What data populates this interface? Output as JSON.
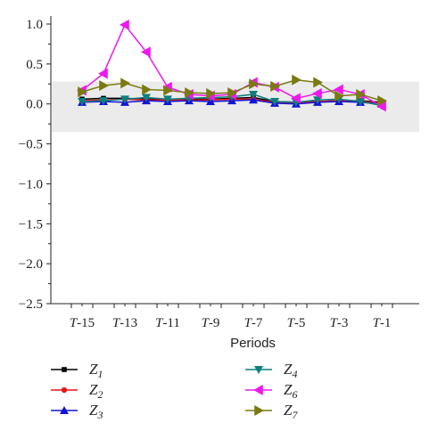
{
  "chart_data": {
    "type": "line",
    "xlabel": "Periods",
    "ylabel": "",
    "ylim": [
      -2.5,
      1.0
    ],
    "yticks": [
      1.0,
      0.5,
      0.0,
      -0.5,
      -1.0,
      -1.5,
      -2.0,
      -2.5
    ],
    "ytick_labels": [
      "1.0",
      "0.5",
      "0.0",
      "−0.5",
      "−1.0",
      "−1.5",
      "−2.0",
      "−2.5"
    ],
    "x": [
      "T-15",
      "T-14",
      "T-13",
      "T-12",
      "T-11",
      "T-10",
      "T-9",
      "T-8",
      "T-7",
      "T-6",
      "T-5",
      "T-4",
      "T-3",
      "T-2",
      "T-1"
    ],
    "xtick_labels": [
      {
        "label": "T-15",
        "prefix": "T",
        "suffix": "-15"
      },
      {
        "label": "T-13",
        "prefix": "T",
        "suffix": "-13"
      },
      {
        "label": "T-11",
        "prefix": "T",
        "suffix": "-11"
      },
      {
        "label": "T-9",
        "prefix": "T",
        "suffix": "-9"
      },
      {
        "label": "T-7",
        "prefix": "T",
        "suffix": "-7"
      },
      {
        "label": "T-5",
        "prefix": "T",
        "suffix": "-5"
      },
      {
        "label": "T-3",
        "prefix": "T",
        "suffix": "-3"
      },
      {
        "label": "T-1",
        "prefix": "T",
        "suffix": "-1"
      }
    ],
    "shaded_band": [
      -0.35,
      0.28
    ],
    "shaded_color": "#ebebeb",
    "legend_placement": "bottom",
    "series": [
      {
        "name": "Z1",
        "base": "Z",
        "sub": "1",
        "color": "#000000",
        "marker": "square",
        "values": [
          0.06,
          0.07,
          0.07,
          0.06,
          0.06,
          0.06,
          0.06,
          0.07,
          0.08,
          0.03,
          0.02,
          0.03,
          0.04,
          0.04,
          0.02
        ]
      },
      {
        "name": "Z2",
        "base": "Z",
        "sub": "2",
        "color": "#e81416",
        "marker": "circle",
        "values": [
          0.04,
          0.05,
          0.06,
          0.05,
          0.05,
          0.05,
          0.05,
          0.06,
          0.06,
          0.02,
          0.01,
          0.03,
          0.04,
          0.03,
          0.01
        ]
      },
      {
        "name": "Z3",
        "base": "Z",
        "sub": "3",
        "color": "#1212d8",
        "marker": "triangle-up",
        "values": [
          0.02,
          0.03,
          0.02,
          0.04,
          0.03,
          0.04,
          0.03,
          0.04,
          0.05,
          0.01,
          0.0,
          0.02,
          0.03,
          0.02,
          0.0
        ]
      },
      {
        "name": "Z4",
        "base": "Z",
        "sub": "4",
        "color": "#0e7e7e",
        "marker": "triangle-down",
        "values": [
          0.03,
          0.04,
          0.06,
          0.08,
          0.06,
          0.07,
          0.08,
          0.09,
          0.12,
          0.03,
          0.02,
          0.05,
          0.06,
          0.03,
          -0.02
        ]
      },
      {
        "name": "Z6",
        "base": "Z",
        "sub": "6",
        "color": "#ee18ee",
        "marker": "triangle-left",
        "values": [
          0.17,
          0.38,
          0.99,
          0.65,
          0.21,
          0.12,
          0.1,
          0.12,
          0.27,
          0.21,
          0.07,
          0.13,
          0.18,
          0.12,
          -0.03
        ]
      },
      {
        "name": "Z7",
        "base": "Z",
        "sub": "7",
        "color": "#7a7a12",
        "marker": "triangle-right",
        "values": [
          0.15,
          0.23,
          0.26,
          0.18,
          0.17,
          0.14,
          0.13,
          0.14,
          0.25,
          0.22,
          0.3,
          0.27,
          0.1,
          0.12,
          0.04
        ]
      }
    ]
  }
}
